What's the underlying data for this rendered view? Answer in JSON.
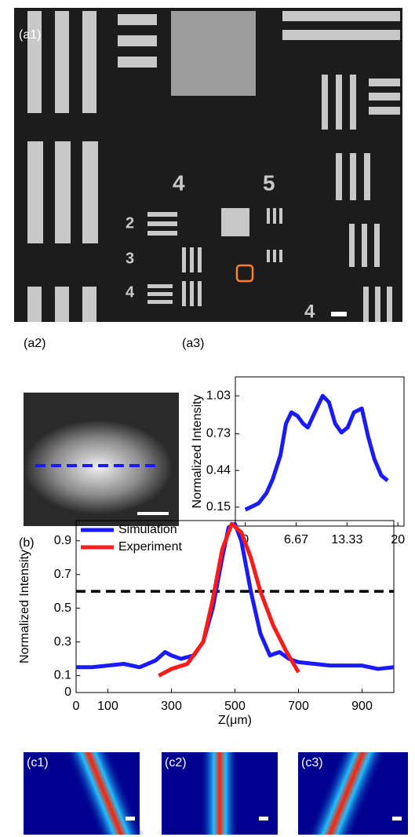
{
  "panels": {
    "a1": "(a1)",
    "a2": "(a2)",
    "a3": "(a3)",
    "b": "(b)",
    "c1": "(c1)",
    "c2": "(c2)",
    "c3": "(c3)"
  },
  "chart_data": [
    {
      "type": "line",
      "ylabel": "Normalized Intensity",
      "xlim": [
        -1.3,
        20.8
      ],
      "xticks": [
        0,
        6.67,
        13.33,
        20
      ],
      "ylim": [
        0,
        1.18
      ],
      "yticks": [
        0.15,
        0.44,
        0.73,
        1.03
      ],
      "series": [
        {
          "color": "#1a1aff",
          "x": [
            0,
            0.72,
            1.74,
            2.77,
            3.59,
            4.61,
            5.33,
            6.05,
            6.86,
            7.58,
            8.2,
            9.12,
            10.14,
            10.96,
            11.78,
            12.6,
            13.42,
            14.24,
            15.27,
            16.09,
            16.91,
            17.83,
            18.65
          ],
          "values": [
            0.13,
            0.15,
            0.18,
            0.26,
            0.37,
            0.56,
            0.81,
            0.9,
            0.87,
            0.81,
            0.78,
            0.9,
            1.03,
            0.98,
            0.81,
            0.74,
            0.78,
            0.9,
            0.93,
            0.71,
            0.53,
            0.4,
            0.36
          ]
        }
      ]
    },
    {
      "type": "line",
      "ylabel": "Normalized Intensity",
      "xlabel": "Z(μm)",
      "xlim": [
        0,
        1000
      ],
      "xticks": [
        0,
        100,
        300,
        500,
        700,
        900
      ],
      "ylim": [
        0,
        1.02
      ],
      "yticks": [
        0,
        0.1,
        0.3,
        0.5,
        0.7,
        0.9
      ],
      "hline": 0.6,
      "legend": "upper-left",
      "series": [
        {
          "name": "Simulation",
          "color": "#1a1aff",
          "x": [
            0,
            50,
            100,
            150,
            200,
            250,
            280,
            300,
            330,
            370,
            400,
            430,
            460,
            480,
            500,
            520,
            550,
            580,
            610,
            640,
            670,
            700,
            800,
            900,
            950,
            1000
          ],
          "values": [
            0.15,
            0.15,
            0.16,
            0.17,
            0.15,
            0.19,
            0.24,
            0.22,
            0.2,
            0.22,
            0.3,
            0.5,
            0.8,
            0.98,
            1.0,
            0.9,
            0.6,
            0.35,
            0.22,
            0.24,
            0.2,
            0.18,
            0.16,
            0.16,
            0.14,
            0.15
          ]
        },
        {
          "name": "Experiment",
          "color": "#ff1a1a",
          "x": [
            260,
            300,
            350,
            400,
            430,
            460,
            490,
            520,
            550,
            580,
            620,
            660,
            700
          ],
          "values": [
            0.1,
            0.14,
            0.17,
            0.3,
            0.55,
            0.85,
            1.0,
            0.95,
            0.8,
            0.6,
            0.4,
            0.25,
            0.12
          ]
        }
      ]
    }
  ]
}
